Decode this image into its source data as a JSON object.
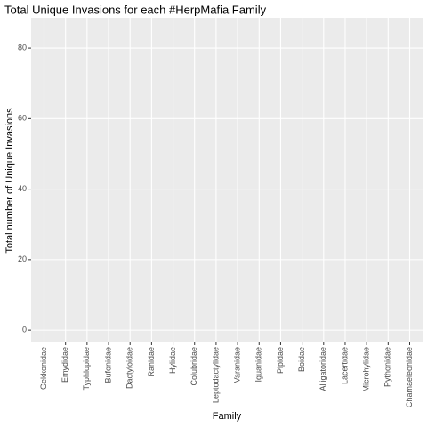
{
  "chart_data": {
    "type": "bar",
    "title": "Total Unique Invasions for each #HerpMafia Family",
    "x_label": "Family",
    "y_label": "Total number of Unique Invasions",
    "categories": [
      "Gekkonidae",
      "Emydidae",
      "Typhlopidae",
      "Bufonidae",
      "Dactyloidae",
      "Ranidae",
      "Hylidae",
      "Colubridae",
      "Leptodactylidae",
      "Varanidae",
      "Iguanidae",
      "Pipidae",
      "Boidae",
      "Alligatoridae",
      "Lacertidae",
      "Microhylidae",
      "Pythonidae",
      "Chamaeleonidae"
    ],
    "ylim": [
      -3.5,
      88.6
    ],
    "yticks": [
      0,
      20,
      40,
      60,
      80
    ],
    "grid": true
  }
}
